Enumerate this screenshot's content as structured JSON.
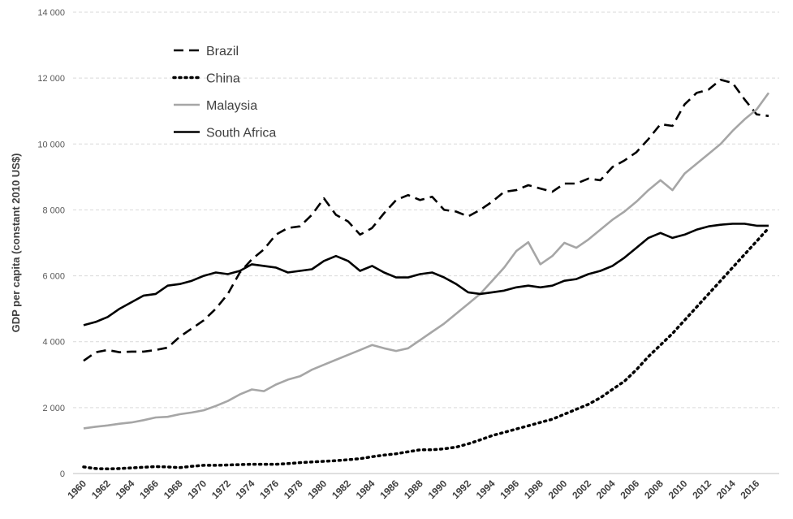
{
  "chart_data": {
    "type": "line",
    "title": "",
    "xlabel": "",
    "ylabel": "GDP per capita (constant 2010 US$)",
    "ylim": [
      0,
      14000
    ],
    "yticks": [
      0,
      2000,
      4000,
      6000,
      8000,
      10000,
      12000,
      14000
    ],
    "ytick_labels": [
      "0",
      "2 000",
      "4 000",
      "6 000",
      "8 000",
      "10 000",
      "12 000",
      "14 000"
    ],
    "x": [
      1960,
      1961,
      1962,
      1963,
      1964,
      1965,
      1966,
      1967,
      1968,
      1969,
      1970,
      1971,
      1972,
      1973,
      1974,
      1975,
      1976,
      1977,
      1978,
      1979,
      1980,
      1981,
      1982,
      1983,
      1984,
      1985,
      1986,
      1987,
      1988,
      1989,
      1990,
      1991,
      1992,
      1993,
      1994,
      1995,
      1996,
      1997,
      1998,
      1999,
      2000,
      2001,
      2002,
      2003,
      2004,
      2005,
      2006,
      2007,
      2008,
      2009,
      2010,
      2011,
      2012,
      2013,
      2014,
      2015,
      2016,
      2017
    ],
    "xtick_labels": [
      "1960",
      "1962",
      "1964",
      "1966",
      "1968",
      "1970",
      "1972",
      "1974",
      "1976",
      "1978",
      "1980",
      "1982",
      "1984",
      "1986",
      "1988",
      "1990",
      "1992",
      "1994",
      "1996",
      "1998",
      "2000",
      "2002",
      "2004",
      "2006",
      "2008",
      "2010",
      "2012",
      "2014",
      "2016"
    ],
    "grid": true,
    "legend_position": "top-left",
    "series": [
      {
        "name": "Brazil",
        "style": "dashed",
        "color": "#000000",
        "values": [
          3420,
          3680,
          3750,
          3680,
          3700,
          3700,
          3750,
          3820,
          4150,
          4400,
          4650,
          5000,
          5450,
          6100,
          6500,
          6800,
          7250,
          7450,
          7500,
          7850,
          8350,
          7850,
          7650,
          7250,
          7450,
          7900,
          8300,
          8450,
          8300,
          8400,
          8000,
          7950,
          7800,
          8000,
          8250,
          8550,
          8600,
          8750,
          8650,
          8550,
          8800,
          8800,
          8950,
          8900,
          9300,
          9500,
          9750,
          10150,
          10600,
          10550,
          11200,
          11550,
          11650,
          11950,
          11850,
          11350,
          10900,
          10850
        ]
      },
      {
        "name": "China",
        "style": "dotted",
        "color": "#000000",
        "values": [
          200,
          150,
          140,
          150,
          170,
          190,
          210,
          200,
          180,
          220,
          250,
          250,
          260,
          270,
          280,
          280,
          280,
          300,
          330,
          350,
          370,
          390,
          420,
          450,
          510,
          560,
          600,
          660,
          720,
          720,
          750,
          800,
          900,
          1020,
          1150,
          1250,
          1350,
          1450,
          1550,
          1650,
          1800,
          1950,
          2100,
          2300,
          2550,
          2800,
          3150,
          3550,
          3900,
          4250,
          4650,
          5050,
          5450,
          5850,
          6250,
          6650,
          7050,
          7450
        ]
      },
      {
        "name": "Malaysia",
        "style": "solid",
        "color": "#a6a6a6",
        "values": [
          1370,
          1420,
          1460,
          1510,
          1550,
          1620,
          1700,
          1720,
          1800,
          1850,
          1920,
          2050,
          2200,
          2400,
          2550,
          2500,
          2700,
          2850,
          2950,
          3150,
          3300,
          3450,
          3600,
          3750,
          3900,
          3800,
          3720,
          3800,
          4050,
          4300,
          4550,
          4850,
          5150,
          5450,
          5850,
          6250,
          6750,
          7020,
          6350,
          6600,
          7000,
          6850,
          7100,
          7400,
          7700,
          7950,
          8250,
          8600,
          8900,
          8600,
          9100,
          9400,
          9700,
          10000,
          10400,
          10750,
          11050,
          11550
        ]
      },
      {
        "name": "South Africa",
        "style": "solid",
        "color": "#000000",
        "values": [
          4500,
          4600,
          4750,
          5000,
          5200,
          5400,
          5450,
          5700,
          5750,
          5850,
          6000,
          6100,
          6050,
          6150,
          6350,
          6300,
          6250,
          6100,
          6150,
          6200,
          6450,
          6600,
          6450,
          6150,
          6300,
          6100,
          5950,
          5950,
          6050,
          6100,
          5950,
          5750,
          5500,
          5450,
          5500,
          5550,
          5650,
          5700,
          5650,
          5700,
          5850,
          5900,
          6050,
          6150,
          6300,
          6550,
          6850,
          7150,
          7300,
          7150,
          7250,
          7400,
          7500,
          7550,
          7580,
          7580,
          7520,
          7520
        ]
      }
    ]
  }
}
